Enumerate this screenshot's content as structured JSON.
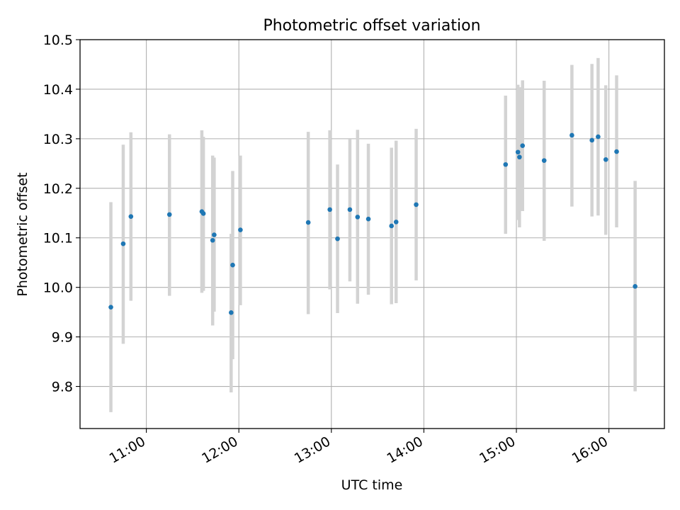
{
  "chart_data": {
    "type": "scatter",
    "title": "Photometric offset variation",
    "xlabel": "UTC time",
    "ylabel": "Photometric offset",
    "x_axis_type": "time",
    "xlim": [
      "10:17",
      "16:36"
    ],
    "ylim": [
      9.715,
      10.5
    ],
    "grid": true,
    "x_ticks": [
      {
        "value": "11:00",
        "label": "11:00"
      },
      {
        "value": "12:00",
        "label": "12:00"
      },
      {
        "value": "13:00",
        "label": "13:00"
      },
      {
        "value": "14:00",
        "label": "14:00"
      },
      {
        "value": "15:00",
        "label": "15:00"
      },
      {
        "value": "16:00",
        "label": "16:00"
      }
    ],
    "y_ticks": [
      {
        "value": 9.8,
        "label": "9.8"
      },
      {
        "value": 9.9,
        "label": "9.9"
      },
      {
        "value": 10.0,
        "label": "10.0"
      },
      {
        "value": 10.1,
        "label": "10.1"
      },
      {
        "value": 10.2,
        "label": "10.2"
      },
      {
        "value": 10.3,
        "label": "10.3"
      },
      {
        "value": 10.4,
        "label": "10.4"
      },
      {
        "value": 10.5,
        "label": "10.5"
      }
    ],
    "colors": {
      "marker": "#1f77b4",
      "errorbar": "#d3d3d3",
      "grid": "#b0b0b0"
    },
    "points": [
      {
        "x": "10:37",
        "y": 9.96,
        "err_low": 9.748,
        "err_high": 10.172
      },
      {
        "x": "10:45",
        "y": 10.088,
        "err_low": 9.886,
        "err_high": 10.288
      },
      {
        "x": "10:50",
        "y": 10.143,
        "err_low": 9.973,
        "err_high": 10.313
      },
      {
        "x": "11:15",
        "y": 10.147,
        "err_low": 9.983,
        "err_high": 10.309
      },
      {
        "x": "11:36",
        "y": 10.153,
        "err_low": 9.989,
        "err_high": 10.317
      },
      {
        "x": "11:37",
        "y": 10.149,
        "err_low": 9.993,
        "err_high": 10.304
      },
      {
        "x": "11:43",
        "y": 10.095,
        "err_low": 9.923,
        "err_high": 10.266
      },
      {
        "x": "11:44",
        "y": 10.106,
        "err_low": 9.951,
        "err_high": 10.262
      },
      {
        "x": "11:55",
        "y": 9.949,
        "err_low": 9.788,
        "err_high": 10.108
      },
      {
        "x": "11:56",
        "y": 10.045,
        "err_low": 9.855,
        "err_high": 10.235
      },
      {
        "x": "12:01",
        "y": 10.116,
        "err_low": 9.964,
        "err_high": 10.266
      },
      {
        "x": "12:45",
        "y": 10.131,
        "err_low": 9.946,
        "err_high": 10.314
      },
      {
        "x": "12:59",
        "y": 10.157,
        "err_low": 9.996,
        "err_high": 10.317
      },
      {
        "x": "13:04",
        "y": 10.098,
        "err_low": 9.948,
        "err_high": 10.248
      },
      {
        "x": "13:12",
        "y": 10.157,
        "err_low": 10.012,
        "err_high": 10.299
      },
      {
        "x": "13:17",
        "y": 10.142,
        "err_low": 9.967,
        "err_high": 10.318
      },
      {
        "x": "13:24",
        "y": 10.138,
        "err_low": 9.985,
        "err_high": 10.29
      },
      {
        "x": "13:39",
        "y": 10.124,
        "err_low": 9.966,
        "err_high": 10.282
      },
      {
        "x": "13:42",
        "y": 10.132,
        "err_low": 9.968,
        "err_high": 10.296
      },
      {
        "x": "13:55",
        "y": 10.167,
        "err_low": 10.014,
        "err_high": 10.32
      },
      {
        "x": "14:53",
        "y": 10.248,
        "err_low": 10.108,
        "err_high": 10.387
      },
      {
        "x": "15:01",
        "y": 10.273,
        "err_low": 10.136,
        "err_high": 10.409
      },
      {
        "x": "15:02",
        "y": 10.263,
        "err_low": 10.121,
        "err_high": 10.404
      },
      {
        "x": "15:04",
        "y": 10.286,
        "err_low": 10.154,
        "err_high": 10.418
      },
      {
        "x": "15:18",
        "y": 10.256,
        "err_low": 10.094,
        "err_high": 10.417
      },
      {
        "x": "15:36",
        "y": 10.307,
        "err_low": 10.163,
        "err_high": 10.449
      },
      {
        "x": "15:49",
        "y": 10.297,
        "err_low": 10.143,
        "err_high": 10.451
      },
      {
        "x": "15:53",
        "y": 10.304,
        "err_low": 10.145,
        "err_high": 10.463
      },
      {
        "x": "15:58",
        "y": 10.258,
        "err_low": 10.106,
        "err_high": 10.408
      },
      {
        "x": "16:05",
        "y": 10.274,
        "err_low": 10.121,
        "err_high": 10.428
      },
      {
        "x": "16:17",
        "y": 10.002,
        "err_low": 9.79,
        "err_high": 10.215
      }
    ]
  }
}
